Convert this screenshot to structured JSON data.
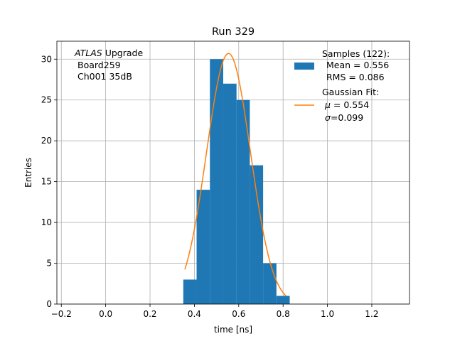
{
  "chart_data": {
    "type": "bar",
    "title": "Run 329",
    "xlabel": "time [ns]",
    "ylabel": "Entries",
    "xlim": [
      -0.22,
      1.37
    ],
    "ylim": [
      0,
      32.2
    ],
    "grid": true,
    "x_ticks": [
      -0.2,
      0.0,
      0.2,
      0.4,
      0.6,
      0.8,
      1.0,
      1.2
    ],
    "x_tick_labels": [
      "−0.2",
      "0.0",
      "0.2",
      "0.4",
      "0.6",
      "0.8",
      "1.0",
      "1.2"
    ],
    "y_ticks": [
      0,
      5,
      10,
      15,
      20,
      25,
      30
    ],
    "y_tick_labels": [
      "0",
      "5",
      "10",
      "15",
      "20",
      "25",
      "30"
    ],
    "bin_width": 0.06,
    "bins": [
      {
        "left": 0.35,
        "value": 3
      },
      {
        "left": 0.41,
        "value": 14
      },
      {
        "left": 0.47,
        "value": 30
      },
      {
        "left": 0.53,
        "value": 27
      },
      {
        "left": 0.59,
        "value": 25
      },
      {
        "left": 0.65,
        "value": 17
      },
      {
        "left": 0.71,
        "value": 5
      },
      {
        "left": 0.77,
        "value": 1
      }
    ],
    "fit": {
      "amplitude": 30.7,
      "mu": 0.554,
      "sigma": 0.099,
      "x_start": 0.357,
      "x_end": 0.813
    },
    "colors": {
      "bars": "#1f77b4",
      "fit": "#ff7f0e",
      "grid": "#b0b0b0"
    },
    "legend": {
      "placement": "top-right",
      "samples_label": [
        "Samples (122):",
        " Mean = 0.556",
        " RMS = 0.086"
      ],
      "fit_label_heading": "Gaussian Fit:",
      "fit_mu_value": " = 0.554",
      "fit_sigma_value": "=0.099"
    },
    "annotation": {
      "atlas": "ATLAS",
      "upgrade": " Upgrade",
      "board": "Board259",
      "channel": "Ch001 35dB"
    }
  }
}
